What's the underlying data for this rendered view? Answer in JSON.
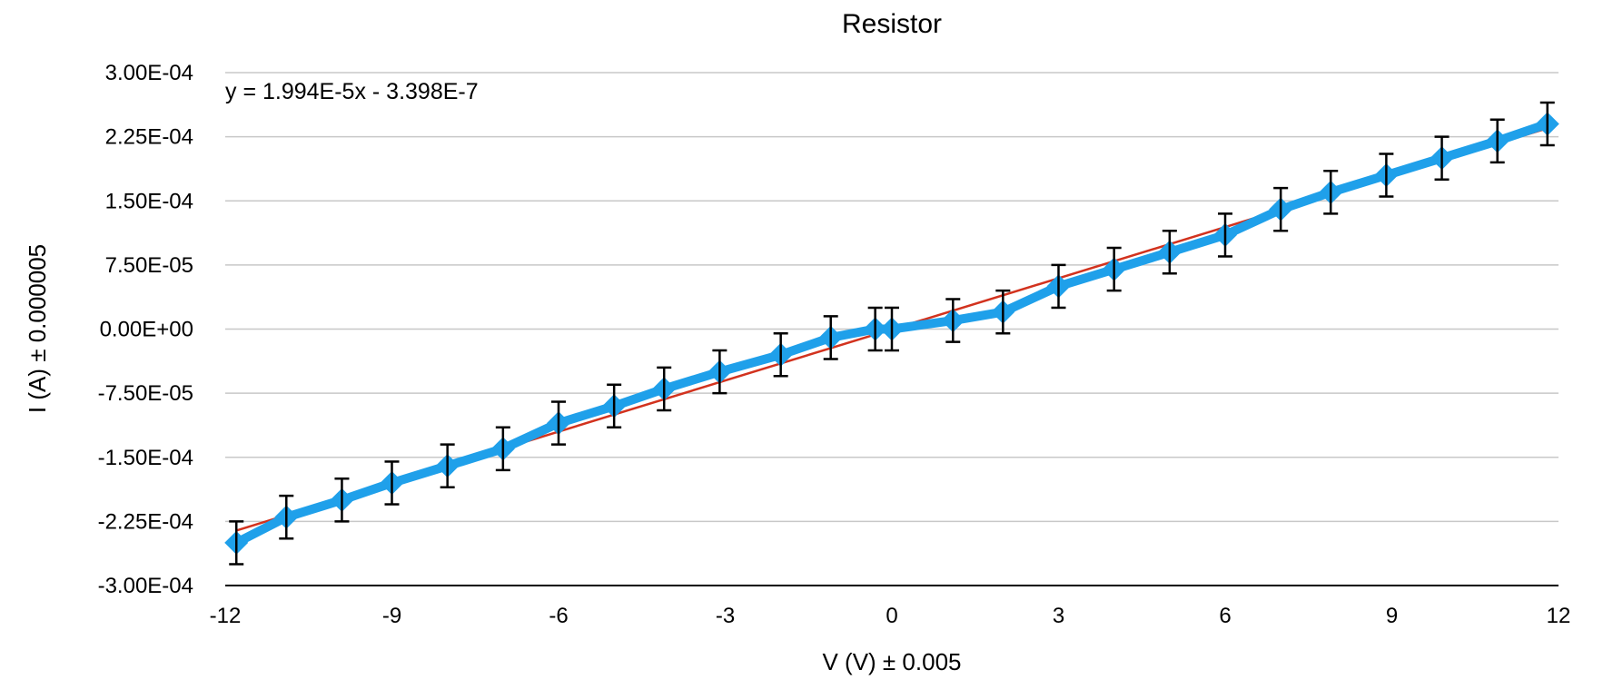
{
  "chart_data": {
    "type": "scatter",
    "title": "Resistor",
    "xlabel": "V (V) ± 0.005",
    "ylabel": "I (A) ± 0.000005",
    "xlim": [
      -12,
      12
    ],
    "ylim": [
      -0.0003,
      0.0003
    ],
    "x_ticks": [
      "-12",
      "-9",
      "-6",
      "-3",
      "0",
      "3",
      "6",
      "9",
      "12"
    ],
    "y_ticks": [
      "3.00E-04",
      "2.25E-04",
      "1.50E-04",
      "7.50E-05",
      "0.00E+00",
      "-7.50E-05",
      "-1.50E-04",
      "-2.25E-04",
      "-3.00E-04"
    ],
    "grid": true,
    "trendline": {
      "equation": "y = 1.994E-5x - 3.398E-7",
      "slope": 1.994e-05,
      "intercept": -3.398e-07,
      "color": "#d2321e"
    },
    "series": [
      {
        "color": "#1fa0ea",
        "error_y": 2.5e-05,
        "x": [
          -11.8,
          -10.9,
          -9.9,
          -9.0,
          -8.0,
          -7.0,
          -6.0,
          -5.0,
          -4.1,
          -3.1,
          -2.0,
          -1.1,
          -0.3,
          0.0,
          1.1,
          2.0,
          3.0,
          4.0,
          5.0,
          6.0,
          7.0,
          7.9,
          8.9,
          9.9,
          10.9,
          11.8
        ],
        "y": [
          -0.00025,
          -0.00022,
          -0.0002,
          -0.00018,
          -0.00016,
          -0.00014,
          -0.00011,
          -9e-05,
          -7e-05,
          -5e-05,
          -3e-05,
          -1e-05,
          0.0,
          0.0,
          1e-05,
          2e-05,
          5e-05,
          7e-05,
          9e-05,
          0.00011,
          0.00014,
          0.00016,
          0.00018,
          0.0002,
          0.00022,
          0.00024
        ]
      }
    ]
  }
}
